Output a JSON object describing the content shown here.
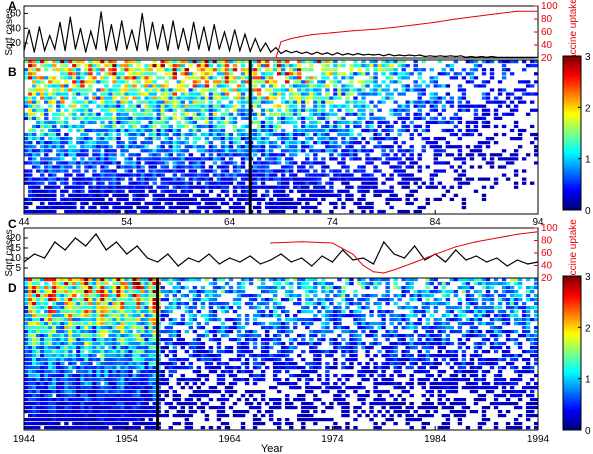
{
  "chart_data": [
    {
      "panel": "A",
      "type": "line",
      "ylabel": "Sqrt cases",
      "y2label": "Vaccine uptake",
      "xlim": [
        1944,
        1994
      ],
      "ylim": [
        0,
        70
      ],
      "y2lim": [
        20,
        100
      ],
      "yticks": [
        20,
        40,
        60
      ],
      "y2ticks": [
        20,
        40,
        60,
        80,
        100
      ],
      "series": [
        {
          "color": "#000000",
          "x": [
            1944,
            1944.5,
            1945,
            1945.5,
            1946,
            1946.5,
            1947,
            1947.5,
            1948,
            1948.5,
            1949,
            1949.5,
            1950,
            1950.5,
            1951,
            1951.5,
            1952,
            1952.5,
            1953,
            1953.5,
            1954,
            1954.5,
            1955,
            1955.5,
            1956,
            1956.5,
            1957,
            1957.5,
            1958,
            1958.5,
            1959,
            1959.5,
            1960,
            1960.5,
            1961,
            1961.5,
            1962,
            1962.5,
            1963,
            1963.5,
            1964,
            1964.5,
            1965,
            1965.5,
            1966,
            1966.5,
            1967,
            1967.5,
            1968,
            1968.5,
            1969,
            1969.5,
            1970,
            1970.5,
            1971,
            1971.5,
            1972,
            1972.5,
            1973,
            1973.5,
            1974,
            1974.5,
            1975,
            1975.5,
            1976,
            1976.5,
            1977,
            1977.5,
            1978,
            1978.5,
            1979,
            1979.5,
            1980,
            1980.5,
            1981,
            1981.5,
            1982,
            1982.5,
            1983,
            1983.5,
            1984,
            1984.5,
            1985,
            1985.5,
            1986,
            1986.5,
            1987,
            1987.5,
            1988,
            1988.5,
            1989,
            1989.5,
            1990,
            1990.5,
            1991,
            1991.5,
            1992,
            1992.5,
            1993,
            1993.5,
            1994
          ],
          "values": [
            10,
            38,
            8,
            42,
            10,
            30,
            12,
            48,
            10,
            55,
            12,
            40,
            8,
            36,
            12,
            62,
            10,
            45,
            10,
            50,
            12,
            38,
            10,
            60,
            10,
            48,
            12,
            45,
            10,
            50,
            12,
            40,
            10,
            48,
            12,
            42,
            10,
            45,
            12,
            35,
            10,
            38,
            10,
            32,
            9,
            26,
            9,
            20,
            8,
            14,
            6,
            10,
            7,
            9,
            6,
            8,
            5,
            8,
            5,
            7,
            4,
            7,
            4,
            6,
            4,
            6,
            4,
            5,
            4,
            5,
            3,
            5,
            3,
            4,
            3,
            4,
            3,
            4,
            2,
            3,
            2,
            3,
            2,
            3,
            2,
            3,
            1,
            2,
            1,
            2,
            1,
            2,
            1,
            1,
            1,
            1,
            1,
            1,
            1,
            1,
            1
          ]
        },
        {
          "color": "#e8000b",
          "axis": "right",
          "x": [
            1968.5,
            1969,
            1970,
            1971,
            1972,
            1974,
            1976,
            1978,
            1980,
            1982,
            1984,
            1986,
            1988,
            1990,
            1992,
            1994
          ],
          "values": [
            20,
            45,
            50,
            53,
            56,
            59,
            62,
            64,
            67,
            71,
            75,
            80,
            84,
            88,
            92,
            92
          ]
        }
      ]
    },
    {
      "panel": "B",
      "type": "heatmap",
      "xlim": [
        1944,
        1994
      ],
      "xticks": [
        44,
        54,
        64,
        74,
        84,
        94
      ],
      "colorbar": {
        "range": [
          0,
          3
        ],
        "ticks": [
          0,
          1,
          2,
          3
        ]
      },
      "marker_year": 1966
    },
    {
      "panel": "C",
      "type": "line",
      "ylabel": "Sqrt cases",
      "y2label": "Vaccine uptake",
      "xlim": [
        1944,
        1994
      ],
      "ylim": [
        0,
        25
      ],
      "y2lim": [
        20,
        100
      ],
      "yticks": [
        5,
        10,
        15,
        20
      ],
      "y2ticks": [
        20,
        40,
        60,
        80,
        100
      ],
      "series": [
        {
          "color": "#000000",
          "x": [
            1944,
            1945,
            1946,
            1947,
            1948,
            1949,
            1950,
            1951,
            1952,
            1953,
            1954,
            1955,
            1956,
            1957,
            1958,
            1959,
            1960,
            1961,
            1962,
            1963,
            1964,
            1965,
            1966,
            1967,
            1968,
            1969,
            1970,
            1971,
            1972,
            1973,
            1974,
            1975,
            1976,
            1977,
            1978,
            1979,
            1980,
            1981,
            1982,
            1983,
            1984,
            1985,
            1986,
            1987,
            1988,
            1989,
            1990,
            1991,
            1992,
            1993,
            1994
          ],
          "values": [
            8,
            12,
            10,
            18,
            14,
            20,
            16,
            22,
            14,
            18,
            12,
            16,
            10,
            8,
            12,
            6,
            10,
            8,
            12,
            7,
            10,
            8,
            11,
            7,
            9,
            12,
            8,
            10,
            6,
            11,
            8,
            14,
            9,
            10,
            7,
            18,
            12,
            10,
            16,
            9,
            12,
            8,
            14,
            9,
            11,
            8,
            10,
            6,
            9,
            7,
            8
          ]
        },
        {
          "color": "#e8000b",
          "axis": "right",
          "x": [
            1968,
            1971,
            1974,
            1976,
            1977,
            1978,
            1979,
            1980,
            1982,
            1984,
            1986,
            1988,
            1990,
            1992,
            1994
          ],
          "values": [
            76,
            78,
            76,
            58,
            40,
            30,
            28,
            33,
            45,
            58,
            70,
            78,
            84,
            90,
            94
          ]
        }
      ]
    },
    {
      "panel": "D",
      "type": "heatmap",
      "xlabel": "Year",
      "xlim": [
        1944,
        1994
      ],
      "xticks": [
        1944,
        1954,
        1964,
        1974,
        1984,
        1994
      ],
      "colorbar": {
        "range": [
          0,
          3
        ],
        "ticks": [
          0,
          1,
          2,
          3
        ]
      },
      "marker_year": 1957
    }
  ]
}
